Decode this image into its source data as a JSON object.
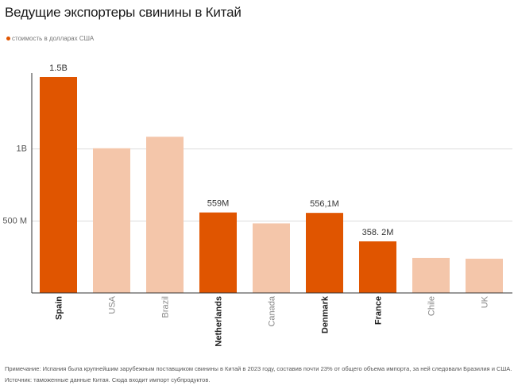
{
  "title": "Ведущие экспортеры свинины в Китай",
  "legend": {
    "label": "стоимость в долларах США",
    "color": "#e05500"
  },
  "footnote": {
    "note": "Примечание: Испания была крупнейшим зарубежным поставщиком свинины в Китай в 2023 году, составив почти 23% от общего объема импорта, за ней следовали Бразилия и США.",
    "source": "Источник: таможенные данные Китая. Сюда входит импорт субпродуктов."
  },
  "colors": {
    "highlight": "#e05500",
    "muted": "#f4c6aa",
    "grid": "#dddddd",
    "axis": "#333333"
  },
  "chart_data": {
    "type": "bar",
    "title": "Ведущие экспортеры свинины в Китай",
    "categories": [
      "Spain",
      "USA",
      "Brazil",
      "Netherlands",
      "Canada",
      "Denmark",
      "France",
      "Chile",
      "UK"
    ],
    "values": [
      1500,
      1005,
      1085,
      559,
      483,
      556.1,
      358.2,
      243,
      238
    ],
    "highlighted": [
      true,
      false,
      false,
      true,
      false,
      true,
      true,
      false,
      false
    ],
    "value_labels": [
      "1.5B",
      "",
      "",
      "559M",
      "",
      "556,1M",
      "358. 2M",
      "",
      ""
    ],
    "y_ticks": [
      {
        "value": 500,
        "label": "500 M"
      },
      {
        "value": 1000,
        "label": "1B"
      }
    ],
    "ylim": [
      0,
      1500
    ],
    "unit": "million USD",
    "grid": true,
    "legend_position": "top-left"
  }
}
